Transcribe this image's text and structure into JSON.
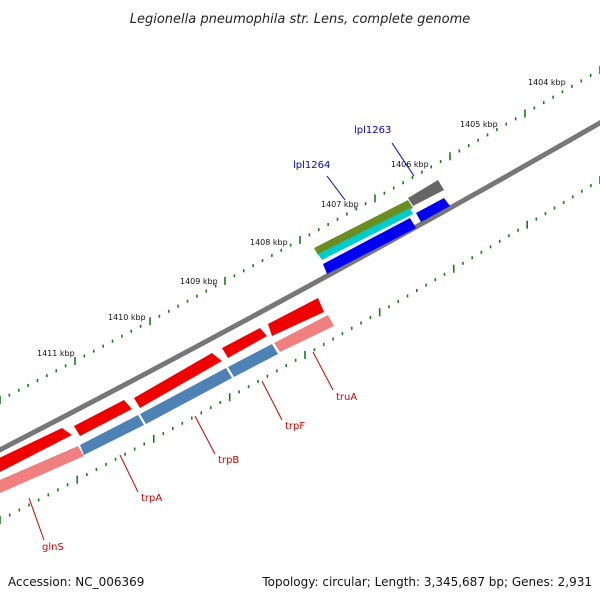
{
  "title": "Legionella pneumophila str. Lens, complete genome",
  "footer": {
    "accession": "Accession: NC_006369",
    "topology": "Topology: circular; Length: 3,345,687 bp; Genes: 2,931"
  },
  "ticks": [
    {
      "label": "1404 kbp"
    },
    {
      "label": "1405 kbp"
    },
    {
      "label": "1406 kbp"
    },
    {
      "label": "1407 kbp"
    },
    {
      "label": "1408 kbp"
    },
    {
      "label": "1409 kbp"
    },
    {
      "label": "1410 kbp"
    },
    {
      "label": "1411 kbp"
    }
  ],
  "genes_forward": [
    {
      "label": "lpl1263",
      "color": "#0000cc"
    },
    {
      "label": "lpl1264",
      "color": "#0000cc"
    }
  ],
  "genes_reverse": [
    {
      "label": "truA",
      "color": "#cc0000"
    },
    {
      "label": "trpF",
      "color": "#cc0000"
    },
    {
      "label": "trpB",
      "color": "#cc0000"
    },
    {
      "label": "trpA",
      "color": "#cc0000"
    },
    {
      "label": "glnS",
      "color": "#cc0000"
    }
  ],
  "colors": {
    "backbone": "#777777",
    "tick_green": "#1a7a1a",
    "cds_red": "#ee0000",
    "cds_pink": "#f08080",
    "steelblue": "#4f82b4",
    "blue": "#0000ee",
    "olive": "#6b8e23",
    "cyan": "#00cccc",
    "gray": "#666666"
  }
}
